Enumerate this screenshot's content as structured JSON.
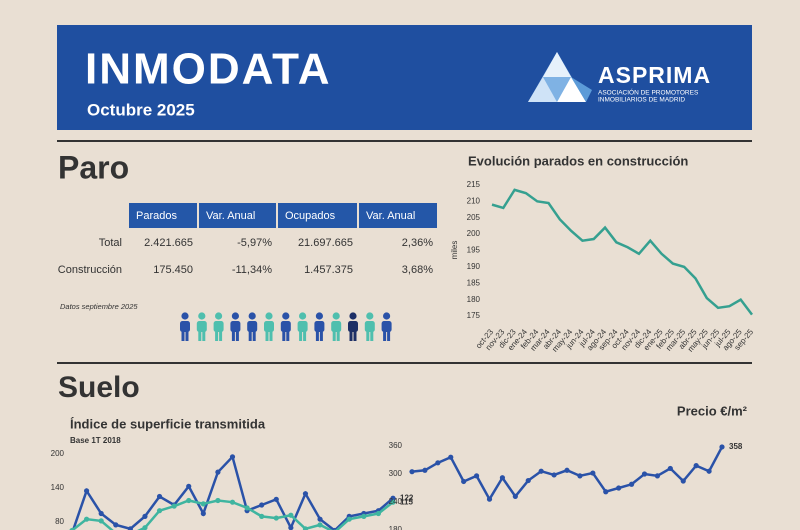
{
  "header": {
    "title": "INMODATA",
    "subtitle": "Octubre 2025",
    "logo_name": "ASPRIMA",
    "logo_tagline_1": "ASOCIACIÓN DE PROMOTORES",
    "logo_tagline_2": "INMOBILIARIOS DE MADRID"
  },
  "paro": {
    "title": "Paro",
    "table": {
      "columns": [
        "Parados",
        "Var. Anual",
        "Ocupados",
        "Var. Anual"
      ],
      "rows": [
        [
          "Total",
          "2.421.665",
          "-5,97%",
          "21.697.665",
          "2,36%"
        ],
        [
          "Construcción",
          "175.450",
          "-11,34%",
          "1.457.375",
          "3,68%"
        ]
      ]
    },
    "note": "Datos septiembre 2025"
  },
  "suelo": {
    "title": "Suelo"
  },
  "chart_data": [
    {
      "type": "line",
      "title": "Evolución parados en construcción",
      "y_label": "miles",
      "categories": [
        "oct-23",
        "nov-23",
        "dic-23",
        "ene-24",
        "feb-24",
        "mar-24",
        "abr-24",
        "may-24",
        "jun-24",
        "jul-24",
        "ago-24",
        "sep-24",
        "oct-24",
        "nov-24",
        "dic-24",
        "ene-25",
        "feb-25",
        "mar-25",
        "abr-25",
        "may-25",
        "jun-25",
        "jul-25",
        "ago-25",
        "sep-25"
      ],
      "series": [
        {
          "color": "#35a090",
          "values": [
            209,
            208,
            213.5,
            212.5,
            210,
            209.5,
            204.5,
            201,
            198,
            198.5,
            202,
            197.5,
            196,
            194,
            198,
            194,
            191,
            190,
            186.5,
            180.5,
            177.5,
            178,
            180,
            175.45
          ]
        }
      ],
      "ylim": [
        173,
        216
      ],
      "yticks": [
        175,
        180,
        185,
        190,
        195,
        200,
        205,
        210,
        215
      ],
      "rotate_x_labels": true
    },
    {
      "type": "line",
      "title": "Índice de superficie transmitida",
      "subtitle": "Base 1T 2018",
      "series": [
        {
          "color": "#2a52a8",
          "markers": true,
          "values": [
            60,
            135,
            95,
            75,
            68,
            90,
            125,
            110,
            143,
            95,
            168,
            195,
            100,
            110,
            120,
            70,
            130,
            85,
            65,
            90,
            95,
            100,
            122
          ]
        },
        {
          "color": "#3fb5a0",
          "markers": true,
          "values": [
            65,
            85,
            82,
            60,
            58,
            70,
            100,
            108,
            118,
            112,
            118,
            115,
            105,
            90,
            87,
            92,
            68,
            75,
            62,
            85,
            90,
            95,
            115
          ]
        }
      ],
      "ylim": [
        70,
        210
      ],
      "yticks": [
        80,
        140,
        200
      ],
      "end_labels": true
    },
    {
      "type": "line",
      "title": "Precio €/m²",
      "series": [
        {
          "color": "#2a52a8",
          "markers": true,
          "values": [
            305,
            308,
            324,
            336,
            284,
            296,
            246,
            292,
            252,
            286,
            306,
            298,
            308,
            296,
            302,
            262,
            270,
            278,
            300,
            296,
            312,
            285,
            318,
            306,
            358
          ]
        }
      ],
      "ylim": [
        175,
        365
      ],
      "yticks": [
        180,
        240,
        300,
        360
      ],
      "end_labels": true
    }
  ]
}
